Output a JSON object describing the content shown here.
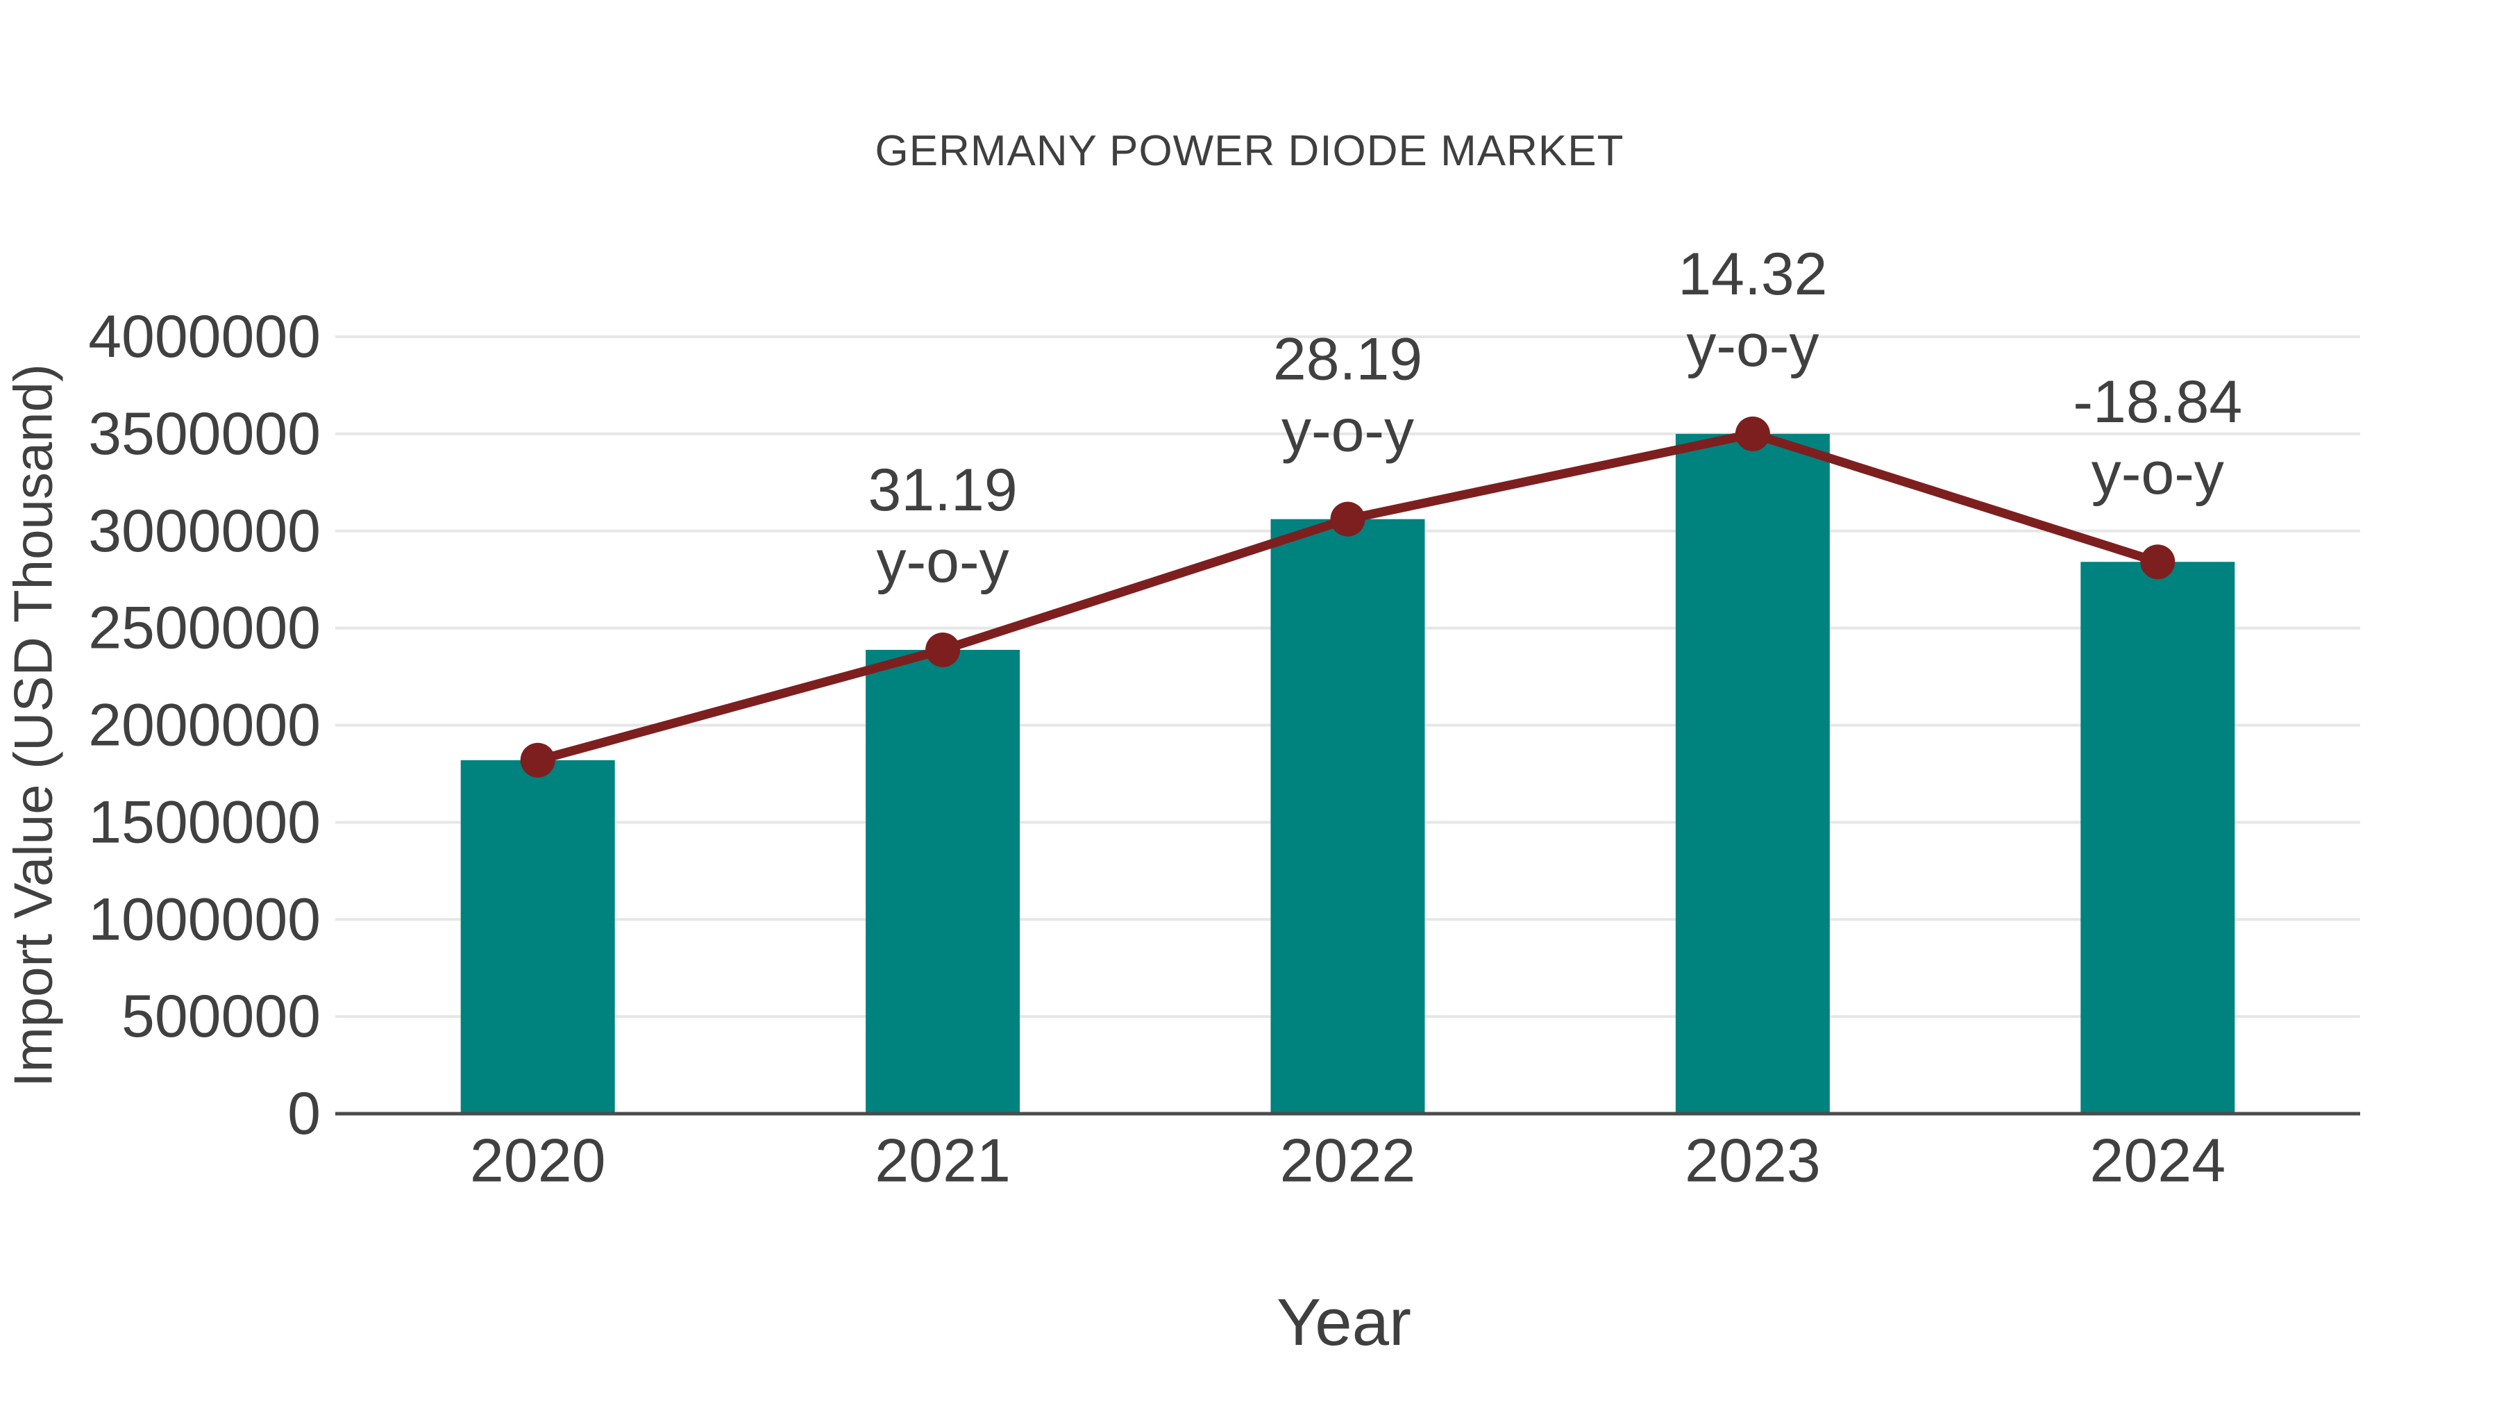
{
  "chart_data": {
    "type": "bar",
    "title": "GERMANY POWER DIODE MARKET",
    "xlabel": "Year",
    "ylabel": "Import Value (USD Thousand)",
    "categories": [
      "2020",
      "2021",
      "2022",
      "2023",
      "2024"
    ],
    "series": [
      {
        "name": "Import Value (USD Thousand)",
        "type": "bar",
        "color": "#00827F",
        "values": [
          1820000,
          2388000,
          3061000,
          3500000,
          2841000
        ]
      },
      {
        "name": "y-o-y growth (%)",
        "type": "line",
        "color": "#7E1F1F",
        "values": [
          1820000,
          2388000,
          3061000,
          3500000,
          2841000
        ],
        "point_labels": [
          "",
          "31.19",
          "28.19",
          "14.32",
          "-18.84"
        ],
        "point_label_suffix": "y-o-y"
      }
    ],
    "ylim": [
      0,
      4000000
    ],
    "yticks": [
      0,
      500000,
      1000000,
      1500000,
      2000000,
      2500000,
      3000000,
      3500000,
      4000000
    ],
    "grid": "horizontal-only",
    "legend": "none",
    "colors": {
      "background": "#FFFFFF",
      "text": "#404040",
      "grid": "#E6E6E6",
      "axis": "#4B4B4B",
      "bar": "#00827F",
      "line": "#7E1F1F"
    }
  }
}
